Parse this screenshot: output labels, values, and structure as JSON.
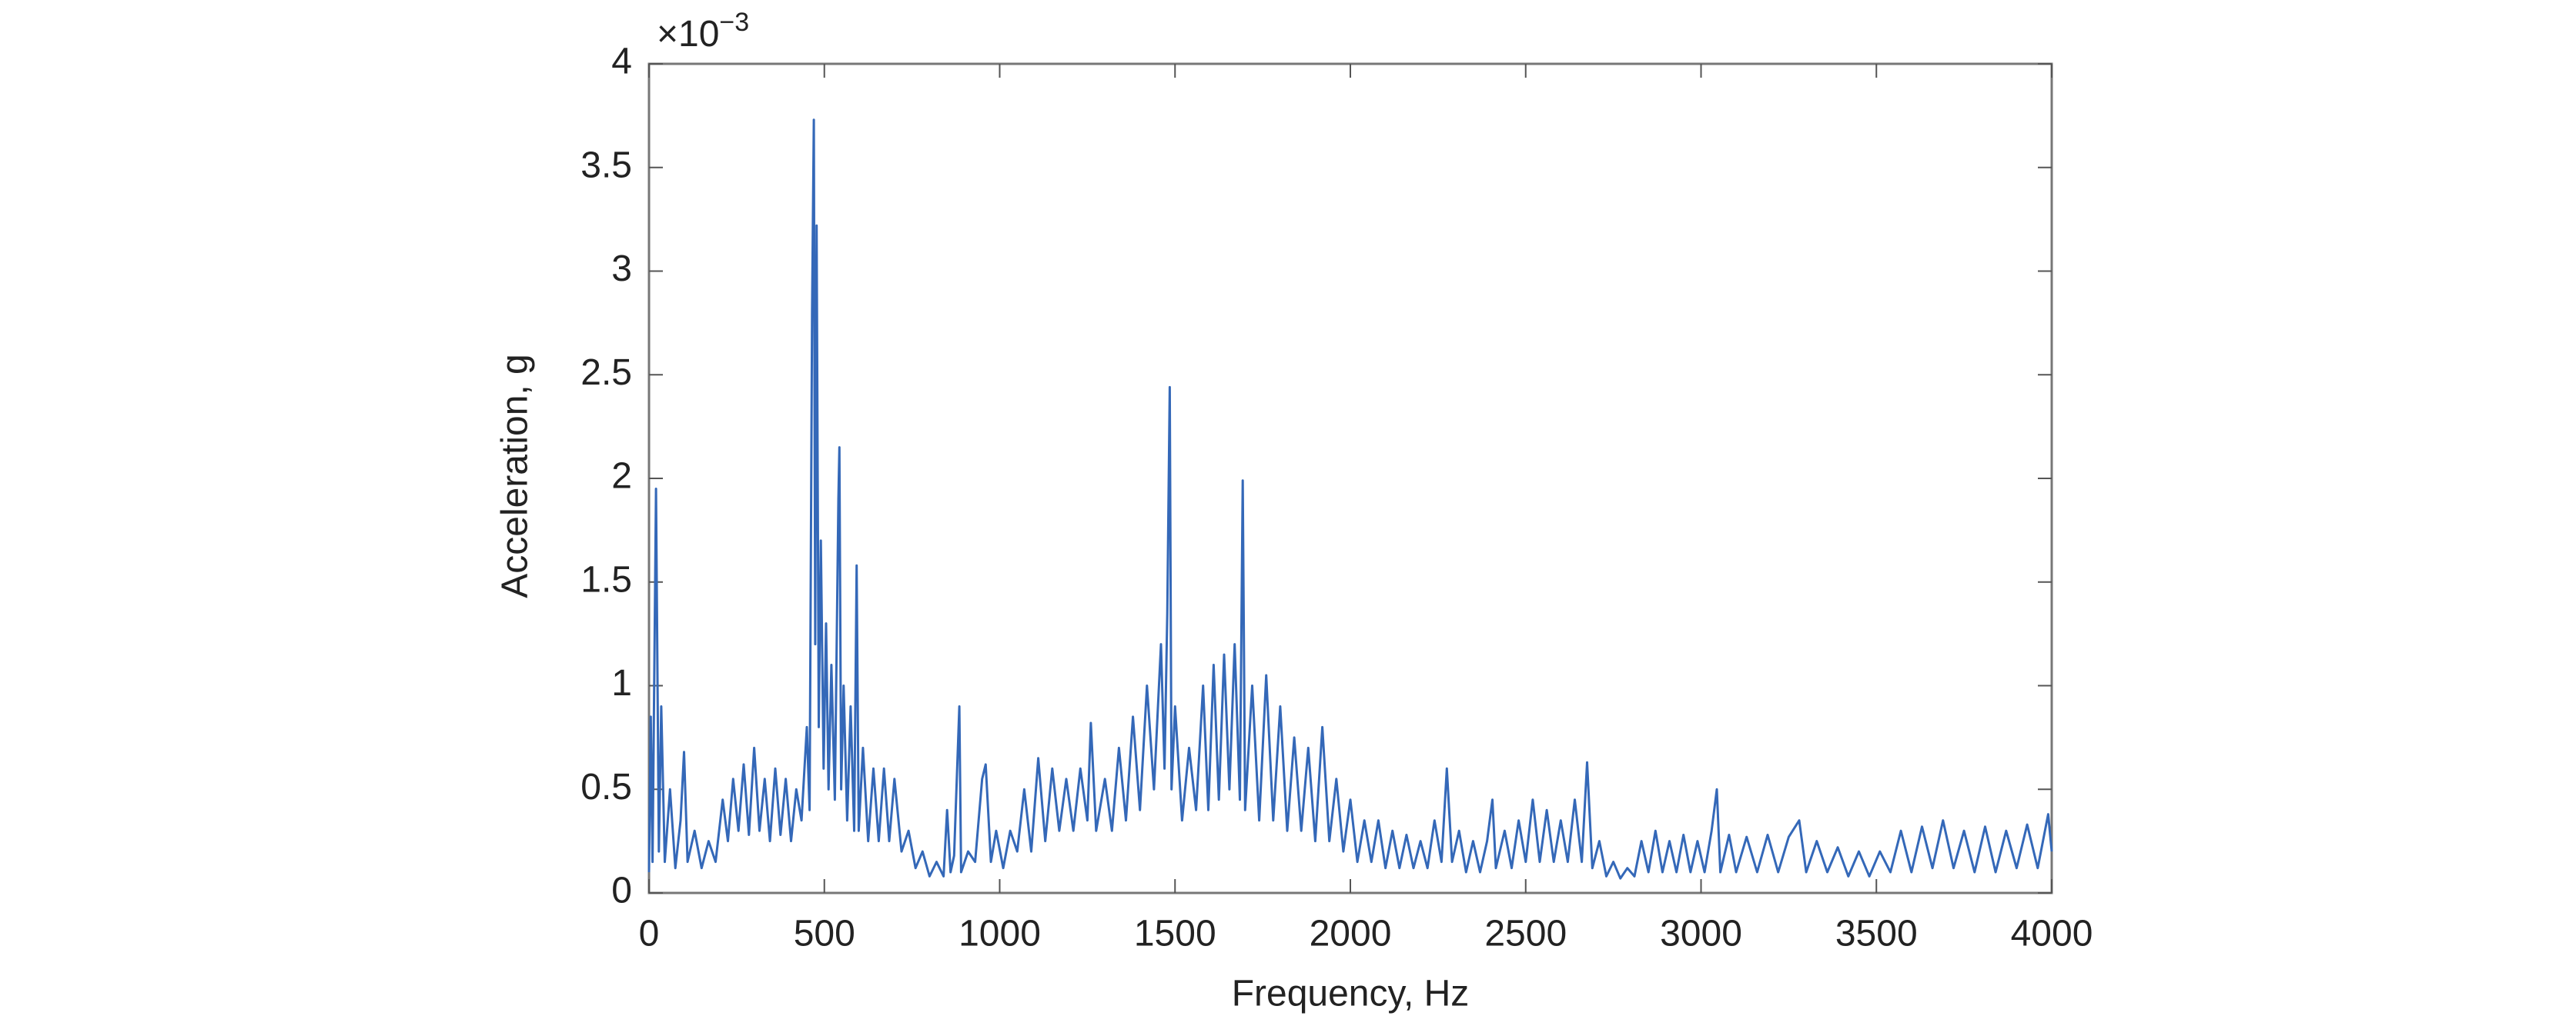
{
  "chart_data": {
    "type": "line",
    "x_label": "Frequency, Hz",
    "y_label": "Acceleration, g",
    "y_multiplier": "×10",
    "y_exponent": "−3",
    "color": "#3468b8",
    "xlim": [
      0,
      4000
    ],
    "xticks": [
      0,
      500,
      1000,
      1500,
      2000,
      2500,
      3000,
      3500,
      4000
    ],
    "ylim": [
      0,
      4
    ],
    "yticks": [
      0,
      0.5,
      1,
      1.5,
      2,
      2.5,
      3,
      3.5,
      4
    ],
    "grid": false,
    "x": [
      0,
      5,
      10,
      20,
      28,
      35,
      45,
      60,
      75,
      90,
      100,
      110,
      130,
      150,
      170,
      190,
      210,
      225,
      240,
      255,
      270,
      285,
      300,
      315,
      330,
      345,
      360,
      375,
      390,
      405,
      420,
      435,
      450,
      458,
      465,
      470,
      474,
      478,
      484,
      490,
      498,
      505,
      512,
      520,
      530,
      540,
      543,
      548,
      555,
      565,
      575,
      585,
      592,
      598,
      610,
      625,
      640,
      655,
      670,
      685,
      700,
      720,
      740,
      760,
      780,
      800,
      820,
      840,
      850,
      860,
      870,
      885,
      890,
      910,
      930,
      950,
      960,
      975,
      990,
      1010,
      1030,
      1050,
      1070,
      1090,
      1110,
      1130,
      1150,
      1170,
      1190,
      1210,
      1230,
      1250,
      1260,
      1275,
      1300,
      1320,
      1340,
      1360,
      1380,
      1400,
      1420,
      1440,
      1460,
      1470,
      1478,
      1485,
      1490,
      1500,
      1520,
      1540,
      1560,
      1580,
      1595,
      1610,
      1625,
      1640,
      1655,
      1670,
      1685,
      1693,
      1700,
      1720,
      1740,
      1760,
      1780,
      1800,
      1820,
      1840,
      1860,
      1880,
      1900,
      1920,
      1940,
      1960,
      1980,
      2000,
      2020,
      2040,
      2060,
      2080,
      2100,
      2120,
      2140,
      2160,
      2180,
      2200,
      2220,
      2240,
      2260,
      2275,
      2290,
      2310,
      2330,
      2350,
      2370,
      2390,
      2405,
      2415,
      2440,
      2460,
      2480,
      2500,
      2520,
      2540,
      2560,
      2580,
      2600,
      2620,
      2640,
      2660,
      2675,
      2690,
      2710,
      2730,
      2750,
      2770,
      2790,
      2810,
      2830,
      2850,
      2870,
      2890,
      2910,
      2930,
      2950,
      2970,
      2990,
      3010,
      3030,
      3045,
      3055,
      3080,
      3100,
      3130,
      3160,
      3190,
      3220,
      3250,
      3280,
      3300,
      3330,
      3360,
      3390,
      3420,
      3450,
      3480,
      3510,
      3540,
      3570,
      3600,
      3630,
      3660,
      3690,
      3720,
      3750,
      3780,
      3810,
      3840,
      3870,
      3900,
      3930,
      3960,
      3990,
      4000
    ],
    "values": [
      0.1,
      0.85,
      0.15,
      1.95,
      0.2,
      0.9,
      0.15,
      0.5,
      0.12,
      0.35,
      0.68,
      0.15,
      0.3,
      0.12,
      0.25,
      0.15,
      0.45,
      0.25,
      0.55,
      0.3,
      0.62,
      0.28,
      0.7,
      0.3,
      0.55,
      0.25,
      0.6,
      0.28,
      0.55,
      0.25,
      0.5,
      0.35,
      0.8,
      0.4,
      2.8,
      3.73,
      1.2,
      3.22,
      0.8,
      1.7,
      0.6,
      1.3,
      0.5,
      1.1,
      0.45,
      1.9,
      2.15,
      0.5,
      1.0,
      0.35,
      0.9,
      0.3,
      1.58,
      0.3,
      0.7,
      0.25,
      0.6,
      0.25,
      0.6,
      0.25,
      0.55,
      0.2,
      0.3,
      0.12,
      0.2,
      0.08,
      0.15,
      0.08,
      0.4,
      0.1,
      0.18,
      0.9,
      0.1,
      0.2,
      0.15,
      0.55,
      0.62,
      0.15,
      0.3,
      0.12,
      0.3,
      0.2,
      0.5,
      0.2,
      0.65,
      0.25,
      0.6,
      0.3,
      0.55,
      0.3,
      0.6,
      0.35,
      0.82,
      0.3,
      0.55,
      0.3,
      0.7,
      0.35,
      0.85,
      0.4,
      1.0,
      0.5,
      1.2,
      0.6,
      1.35,
      2.44,
      0.5,
      0.9,
      0.35,
      0.7,
      0.4,
      1.0,
      0.4,
      1.1,
      0.45,
      1.15,
      0.5,
      1.2,
      0.45,
      1.99,
      0.4,
      1.0,
      0.35,
      1.05,
      0.35,
      0.9,
      0.3,
      0.75,
      0.3,
      0.7,
      0.25,
      0.8,
      0.25,
      0.55,
      0.2,
      0.45,
      0.15,
      0.35,
      0.15,
      0.35,
      0.12,
      0.3,
      0.12,
      0.28,
      0.12,
      0.25,
      0.12,
      0.35,
      0.15,
      0.6,
      0.15,
      0.3,
      0.1,
      0.25,
      0.1,
      0.25,
      0.45,
      0.12,
      0.3,
      0.12,
      0.35,
      0.15,
      0.45,
      0.15,
      0.4,
      0.15,
      0.35,
      0.15,
      0.45,
      0.15,
      0.63,
      0.12,
      0.25,
      0.08,
      0.15,
      0.07,
      0.12,
      0.08,
      0.25,
      0.1,
      0.3,
      0.1,
      0.25,
      0.1,
      0.28,
      0.1,
      0.25,
      0.1,
      0.3,
      0.5,
      0.1,
      0.28,
      0.1,
      0.27,
      0.1,
      0.28,
      0.1,
      0.27,
      0.35,
      0.1,
      0.25,
      0.1,
      0.22,
      0.08,
      0.2,
      0.08,
      0.2,
      0.1,
      0.3,
      0.1,
      0.32,
      0.12,
      0.35,
      0.12,
      0.3,
      0.1,
      0.32,
      0.1,
      0.3,
      0.12,
      0.33,
      0.12,
      0.38,
      0.2
    ]
  }
}
